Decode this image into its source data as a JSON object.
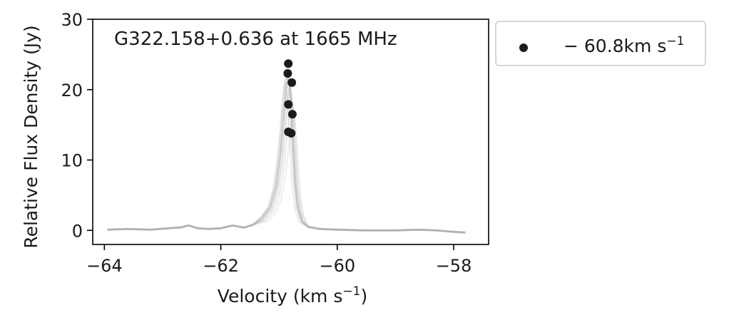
{
  "chart_data": {
    "type": "line",
    "annotation": "G322.158+0.636 at 1665 MHz",
    "xlabel": "Velocity (km s",
    "xlabel_sup": "−1",
    "xlabel_tail": ")",
    "ylabel": "Relative Flux Density (Jy)",
    "xlim": [
      -64.2,
      -57.4
    ],
    "ylim": [
      -2,
      30
    ],
    "xticks": [
      -64,
      -62,
      -60,
      -58
    ],
    "xtick_labels": [
      "−64",
      "−62",
      "−60",
      "−58"
    ],
    "yticks": [
      0,
      10,
      20,
      30
    ],
    "ytick_labels": [
      "0",
      "10",
      "20",
      "30"
    ],
    "grid": false,
    "legend_position": "outside-top-right",
    "legend": {
      "label": "− 60.8km s",
      "label_sup": "−1"
    },
    "colors": {
      "spectra": "#a8a8a8",
      "peaks": "#1c1c1c",
      "axes": "#000000"
    },
    "series": [
      {
        "style": "lines",
        "x": [
          -63.95,
          -63.6,
          -63.2,
          -62.9,
          -62.7,
          -62.55,
          -62.4,
          -62.2,
          -62.0,
          -61.8,
          -61.6,
          -61.45,
          -61.3,
          -61.15,
          -61.05,
          -60.97,
          -60.92,
          -60.88,
          -60.85,
          -60.82,
          -60.79,
          -60.76,
          -60.72,
          -60.67,
          -60.6,
          -60.5,
          -60.3,
          -60.0,
          -59.5,
          -59.0,
          -58.6,
          -58.3,
          -58.0,
          -57.8
        ],
        "y": [
          0.1,
          0.2,
          0.1,
          0.3,
          0.4,
          0.7,
          0.3,
          0.2,
          0.3,
          0.7,
          0.4,
          0.8,
          1.6,
          3.2,
          6.0,
          11.0,
          16.0,
          20.0,
          21.8,
          21.0,
          18.0,
          12.5,
          6.5,
          3.0,
          1.2,
          0.5,
          0.2,
          0.1,
          0.0,
          0.0,
          0.1,
          0.0,
          -0.2,
          -0.3
        ]
      },
      {
        "style": "points",
        "x": [
          -60.84,
          -60.85,
          -60.78,
          -60.84,
          -60.77,
          -60.84,
          -60.79
        ],
        "y": [
          23.7,
          22.3,
          21.0,
          17.9,
          16.5,
          14.0,
          13.8
        ]
      }
    ]
  }
}
